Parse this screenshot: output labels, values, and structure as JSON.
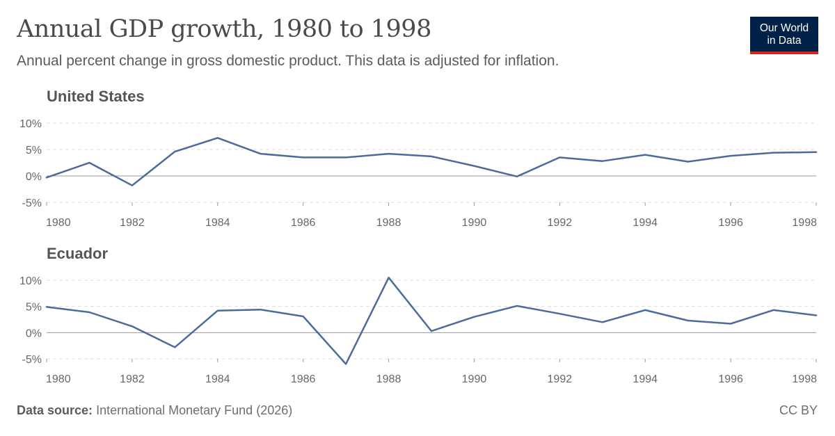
{
  "header": {
    "title": "Annual GDP growth, 1980 to 1998",
    "subtitle": "Annual percent change in gross domestic product. This data is adjusted for inflation."
  },
  "logo": {
    "line1": "Our World",
    "line2": "in Data"
  },
  "footer": {
    "source_label": "Data source:",
    "source_text": "International Monetary Fund (2026)",
    "license": "CC BY"
  },
  "colors": {
    "line": "#4c6a9c",
    "grid": "#dddddd",
    "zero_line": "#999999",
    "tick_text": "#666666",
    "logo_bg": "#002147",
    "logo_accent": "#ce261e"
  },
  "chart_data": [
    {
      "type": "line",
      "title": "United States",
      "x": [
        1980,
        1981,
        1982,
        1983,
        1984,
        1985,
        1986,
        1987,
        1988,
        1989,
        1990,
        1991,
        1992,
        1993,
        1994,
        1995,
        1996,
        1997,
        1998
      ],
      "series": [
        {
          "values": [
            -0.3,
            2.5,
            -1.8,
            4.6,
            7.2,
            4.2,
            3.5,
            3.5,
            4.2,
            3.7,
            1.9,
            -0.1,
            3.5,
            2.8,
            4.0,
            2.7,
            3.8,
            4.4,
            4.5
          ]
        }
      ],
      "ylim": [
        -5,
        10
      ],
      "yticks": [
        -5,
        0,
        5,
        10
      ],
      "ytick_labels": [
        "-5%",
        "0%",
        "5%",
        "10%"
      ],
      "xticks": [
        1980,
        1982,
        1984,
        1986,
        1988,
        1990,
        1992,
        1994,
        1996,
        1998
      ],
      "xlim": [
        1980,
        1998
      ],
      "grid": true
    },
    {
      "type": "line",
      "title": "Ecuador",
      "x": [
        1980,
        1981,
        1982,
        1983,
        1984,
        1985,
        1986,
        1987,
        1988,
        1989,
        1990,
        1991,
        1992,
        1993,
        1994,
        1995,
        1996,
        1997,
        1998
      ],
      "series": [
        {
          "values": [
            4.9,
            3.9,
            1.2,
            -2.8,
            4.2,
            4.4,
            3.1,
            -6.0,
            10.5,
            0.3,
            3.0,
            5.1,
            3.6,
            2.0,
            4.3,
            2.3,
            1.7,
            4.3,
            3.3
          ]
        }
      ],
      "ylim": [
        -5,
        10
      ],
      "yticks": [
        -5,
        0,
        5,
        10
      ],
      "ytick_labels": [
        "-5%",
        "0%",
        "5%",
        "10%"
      ],
      "xticks": [
        1980,
        1982,
        1984,
        1986,
        1988,
        1990,
        1992,
        1994,
        1996,
        1998
      ],
      "xlim": [
        1980,
        1998
      ],
      "grid": true
    }
  ]
}
